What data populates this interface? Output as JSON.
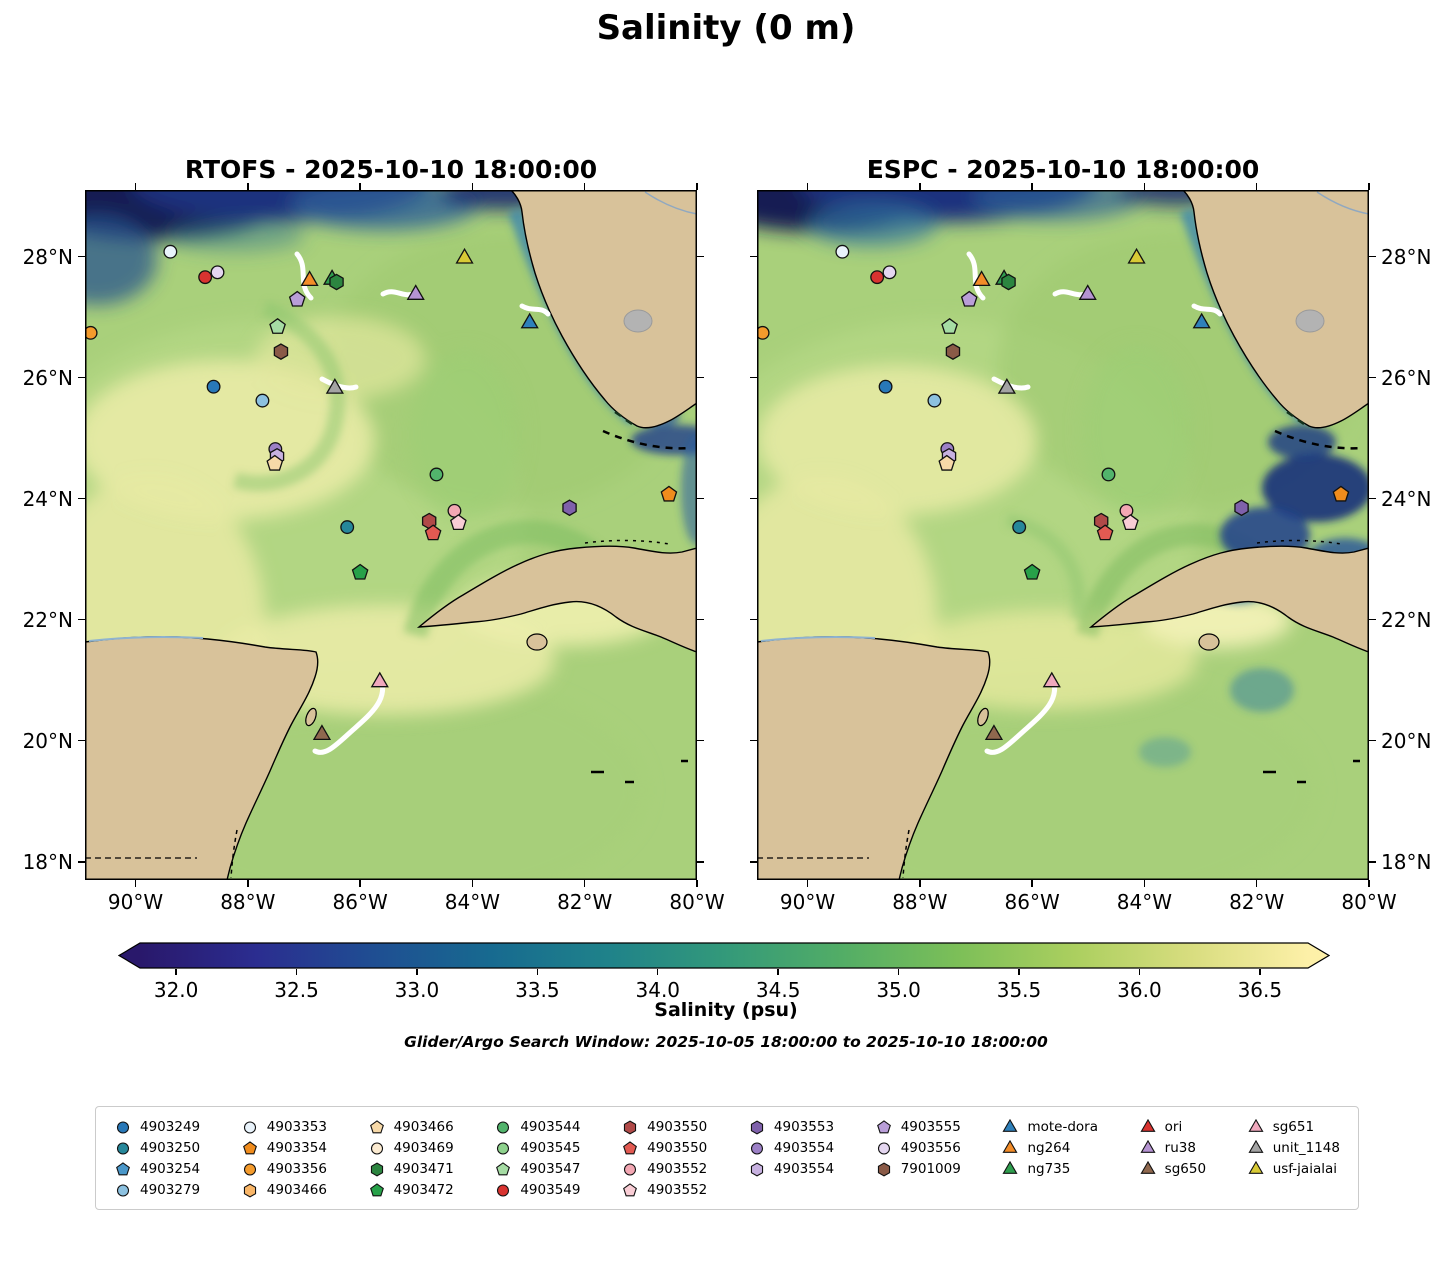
{
  "annotations": {
    "search_window": "Glider/Argo Search Window: 2025-10-05 18:00:00 to 2025-10-10 18:00:00"
  },
  "chart_data": {
    "type": "heatmap",
    "title": "Salinity (0 m)",
    "panels": [
      "RTOFS - 2025-10-10 18:00:00",
      "ESPC - 2025-10-10 18:00:00"
    ],
    "variable": "Salinity (psu)",
    "extent": {
      "lon": [
        -90.9,
        -80.0
      ],
      "lat": [
        17.7,
        29.1
      ]
    },
    "lon_ticks": [
      {
        "value": -90,
        "label": "90°W"
      },
      {
        "value": -88,
        "label": "88°W"
      },
      {
        "value": -86,
        "label": "86°W"
      },
      {
        "value": -84,
        "label": "84°W"
      },
      {
        "value": -82,
        "label": "82°W"
      },
      {
        "value": -80,
        "label": "80°W"
      }
    ],
    "lat_ticks": [
      {
        "value": 28,
        "label": "28°N"
      },
      {
        "value": 26,
        "label": "26°N"
      },
      {
        "value": 24,
        "label": "24°N"
      },
      {
        "value": 22,
        "label": "22°N"
      },
      {
        "value": 20,
        "label": "20°N"
      },
      {
        "value": 18,
        "label": "18°N"
      }
    ],
    "colorbar": {
      "label": "Salinity (psu)",
      "range": [
        32.0,
        36.5
      ],
      "ticks": [
        "32.0",
        "32.5",
        "33.0",
        "33.5",
        "34.0",
        "34.5",
        "35.0",
        "35.5",
        "36.0",
        "36.5"
      ],
      "stops": [
        "#29186b",
        "#2b2d90",
        "#1f4e92",
        "#176a90",
        "#1f828a",
        "#33997a",
        "#52ad66",
        "#7cbf58",
        "#abcf5f",
        "#d8dd7f",
        "#fdf0a8"
      ]
    },
    "markers": [
      {
        "id": "4903353",
        "shape": "circle",
        "color": "#e9f3fb",
        "lon": -89.38,
        "lat": 28.08
      },
      {
        "id": "4903556",
        "shape": "circle",
        "color": "#e4d6f0",
        "lon": -88.54,
        "lat": 27.74
      },
      {
        "id": "4903549",
        "shape": "circle",
        "color": "#d93330",
        "lon": -88.76,
        "lat": 27.66
      },
      {
        "id": "4903555",
        "shape": "pentagon",
        "color": "#b99ed8",
        "lon": -87.12,
        "lat": 27.29
      },
      {
        "id": "ng264",
        "shape": "triangle",
        "color": "#f28c28",
        "lon": -86.9,
        "lat": 27.6
      },
      {
        "id": "ng735",
        "shape": "triangle",
        "color": "#2f9e4e",
        "lon": -86.5,
        "lat": 27.62
      },
      {
        "id": "4903471",
        "shape": "hexagon",
        "color": "#2c8540",
        "lon": -86.42,
        "lat": 27.58
      },
      {
        "id": "usf-jaialai",
        "shape": "triangle",
        "color": "#d8ca35",
        "lon": -84.14,
        "lat": 27.97
      },
      {
        "id": "ru38",
        "shape": "triangle",
        "color": "#b593d2",
        "lon": -85.01,
        "lat": 27.37
      },
      {
        "id": "mote-dora",
        "shape": "triangle",
        "color": "#2f80ba",
        "lon": -82.98,
        "lat": 26.9
      },
      {
        "id": "4903356",
        "shape": "circle",
        "color": "#f49b2c",
        "lon": -90.8,
        "lat": 26.74
      },
      {
        "id": "4903547",
        "shape": "pentagon",
        "color": "#a6dca4",
        "lon": -87.47,
        "lat": 26.84
      },
      {
        "id": "7901009",
        "shape": "hexagon",
        "color": "#8a5a47",
        "lon": -87.41,
        "lat": 26.43
      },
      {
        "id": "4903249",
        "shape": "circle",
        "color": "#2878b8",
        "lon": -88.61,
        "lat": 25.85
      },
      {
        "id": "4903279",
        "shape": "circle",
        "color": "#8cc1e0",
        "lon": -87.74,
        "lat": 25.62
      },
      {
        "id": "unit_1148",
        "shape": "triangle",
        "color": "#a3a3a3",
        "lon": -86.45,
        "lat": 25.82
      },
      {
        "id": "4903554",
        "shape": "circle",
        "color": "#9c80c6",
        "lon": -87.51,
        "lat": 24.82
      },
      {
        "id": "4903554",
        "shape": "hexagon",
        "color": "#c7b1e0",
        "lon": -87.48,
        "lat": 24.7
      },
      {
        "id": "4903466",
        "shape": "pentagon",
        "color": "#f7d9a8",
        "lon": -87.52,
        "lat": 24.58
      },
      {
        "id": "4903544",
        "shape": "circle",
        "color": "#52b46c",
        "lon": -84.64,
        "lat": 24.4
      },
      {
        "id": "4903354",
        "shape": "pentagon",
        "color": "#f08c1d",
        "lon": -80.5,
        "lat": 24.07
      },
      {
        "id": "4903553",
        "shape": "hexagon",
        "color": "#7f61ab",
        "lon": -82.27,
        "lat": 23.85
      },
      {
        "id": "4903552",
        "shape": "circle",
        "color": "#f3a7b3",
        "lon": -84.32,
        "lat": 23.8
      },
      {
        "id": "4903552",
        "shape": "pentagon",
        "color": "#f9cdd5",
        "lon": -84.25,
        "lat": 23.6
      },
      {
        "id": "4903550",
        "shape": "hexagon",
        "color": "#b04a48",
        "lon": -84.77,
        "lat": 23.63
      },
      {
        "id": "4903550",
        "shape": "pentagon",
        "color": "#e25a52",
        "lon": -84.7,
        "lat": 23.43
      },
      {
        "id": "4903250",
        "shape": "circle",
        "color": "#26879a",
        "lon": -86.23,
        "lat": 23.53
      },
      {
        "id": "4903472",
        "shape": "pentagon",
        "color": "#27a149",
        "lon": -86.0,
        "lat": 22.78
      },
      {
        "id": "sg651",
        "shape": "triangle",
        "color": "#f0a8bd",
        "lon": -85.65,
        "lat": 20.97
      },
      {
        "id": "sg650",
        "shape": "triangle",
        "color": "#8f684e",
        "lon": -86.68,
        "lat": 20.1
      }
    ]
  },
  "legend": {
    "columns": [
      [
        {
          "label": "4903249",
          "shape": "circle",
          "color": "#2878b8"
        },
        {
          "label": "4903250",
          "shape": "circle",
          "color": "#26879a"
        },
        {
          "label": "4903254",
          "shape": "pentagon",
          "color": "#4a97c9"
        },
        {
          "label": "4903279",
          "shape": "circle",
          "color": "#8cc1e0"
        }
      ],
      [
        {
          "label": "4903353",
          "shape": "circle",
          "color": "#e9f3fb"
        },
        {
          "label": "4903354",
          "shape": "pentagon",
          "color": "#f08c1d"
        },
        {
          "label": "4903356",
          "shape": "circle",
          "color": "#f49b2c"
        },
        {
          "label": "4903466",
          "shape": "hexagon",
          "color": "#f9b668"
        }
      ],
      [
        {
          "label": "4903466",
          "shape": "pentagon",
          "color": "#f7d9a8"
        },
        {
          "label": "4903469",
          "shape": "circle",
          "color": "#fcebd1"
        },
        {
          "label": "4903471",
          "shape": "hexagon",
          "color": "#2c8540"
        },
        {
          "label": "4903472",
          "shape": "pentagon",
          "color": "#27a149"
        }
      ],
      [
        {
          "label": "4903544",
          "shape": "circle",
          "color": "#52b46c"
        },
        {
          "label": "4903545",
          "shape": "circle",
          "color": "#8ed28d"
        },
        {
          "label": "4903547",
          "shape": "pentagon",
          "color": "#a6dca4"
        },
        {
          "label": "4903549",
          "shape": "circle",
          "color": "#d93330"
        }
      ],
      [
        {
          "label": "4903550",
          "shape": "hexagon",
          "color": "#b04a48"
        },
        {
          "label": "4903550",
          "shape": "pentagon",
          "color": "#e25a52"
        },
        {
          "label": "4903552",
          "shape": "circle",
          "color": "#f3a7b3"
        },
        {
          "label": "4903552",
          "shape": "pentagon",
          "color": "#f9cdd5"
        }
      ],
      [
        {
          "label": "4903553",
          "shape": "hexagon",
          "color": "#7f61ab"
        },
        {
          "label": "4903554",
          "shape": "circle",
          "color": "#9c80c6"
        },
        {
          "label": "4903554",
          "shape": "hexagon",
          "color": "#c7b1e0"
        }
      ],
      [
        {
          "label": "4903555",
          "shape": "pentagon",
          "color": "#b99ed8"
        },
        {
          "label": "4903556",
          "shape": "circle",
          "color": "#e4d6f0"
        },
        {
          "label": "7901009",
          "shape": "hexagon",
          "color": "#8a5a47"
        }
      ],
      [
        {
          "label": "mote-dora",
          "shape": "triangle",
          "color": "#2f80ba"
        },
        {
          "label": "ng264",
          "shape": "triangle",
          "color": "#f28c28"
        },
        {
          "label": "ng735",
          "shape": "triangle",
          "color": "#2f9e4e"
        }
      ],
      [
        {
          "label": "ori",
          "shape": "triangle",
          "color": "#d93330"
        },
        {
          "label": "ru38",
          "shape": "triangle",
          "color": "#b593d2"
        },
        {
          "label": "sg650",
          "shape": "triangle",
          "color": "#8f684e"
        }
      ],
      [
        {
          "label": "sg651",
          "shape": "triangle",
          "color": "#f0a8bd"
        },
        {
          "label": "unit_1148",
          "shape": "triangle",
          "color": "#a3a3a3"
        },
        {
          "label": "usf-jaialai",
          "shape": "triangle",
          "color": "#d8ca35"
        }
      ]
    ]
  }
}
